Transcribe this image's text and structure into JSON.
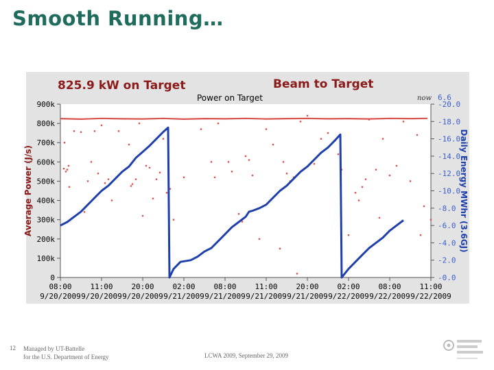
{
  "slide": {
    "title": "Smooth Running…",
    "slide_number": "12",
    "footer_left_line1": "Managed by UT-Battelle",
    "footer_left_line2": "for the U.S. Department of Energy",
    "footer_center": "LCWA 2009, September 29, 2009",
    "logo_name": "ornl-logo"
  },
  "panel": {
    "power_readout": "825.9 kW on Target",
    "beam_label": "Beam to Target",
    "now_label": "now",
    "now_value": "6.6"
  },
  "chart_data": {
    "type": "line",
    "title": "Power on Target",
    "ylabel": "Average Power (J/s)",
    "y2label": "Daily Energy MWhr (3.6GJ)",
    "ylim": [
      0,
      900000
    ],
    "y2lim": [
      0,
      20
    ],
    "y_ticks": [
      "0",
      "100k",
      "200k",
      "300k",
      "400k",
      "500k",
      "600k",
      "700k",
      "800k",
      "900k"
    ],
    "y2_ticks": [
      "-0.0",
      "-2.0",
      "-4.0",
      "-6.0",
      "-8.0",
      "-10.0",
      "-12.0",
      "-14.0",
      "-16.0",
      "-18.0",
      "-20.0"
    ],
    "xlim": [
      0,
      54
    ],
    "x_ticks": [
      {
        "x": 0,
        "time": "08:00",
        "date": "9/20/2009"
      },
      {
        "x": 6,
        "time": "11:00",
        "date": "9/20/2009"
      },
      {
        "x": 12,
        "time": "20:00",
        "date": "9/20/2009"
      },
      {
        "x": 18,
        "time": "02:00",
        "date": "9/21/2009"
      },
      {
        "x": 24,
        "time": "08:00",
        "date": "9/21/2009"
      },
      {
        "x": 30,
        "time": "11:00",
        "date": "9/21/2009"
      },
      {
        "x": 36,
        "time": "20:00",
        "date": "9/21/2009"
      },
      {
        "x": 42,
        "time": "02:00",
        "date": "9/22/2009"
      },
      {
        "x": 48,
        "time": "08:00",
        "date": "9/22/2009"
      },
      {
        "x": 54,
        "time": "11:00",
        "date": "9/22/2009"
      }
    ],
    "series": [
      {
        "axis": "left",
        "color": "#d9534f",
        "points": [
          [
            0,
            825000
          ],
          [
            3,
            822000
          ],
          [
            6,
            826000
          ],
          [
            9,
            824000
          ],
          [
            12,
            823000
          ],
          [
            15,
            826000
          ],
          [
            18,
            822000
          ],
          [
            21,
            825000
          ],
          [
            24,
            824000
          ],
          [
            27,
            826000
          ],
          [
            30,
            823000
          ],
          [
            33,
            825000
          ],
          [
            36,
            826000
          ],
          [
            39,
            824000
          ],
          [
            42,
            825000
          ],
          [
            45,
            823000
          ],
          [
            48,
            826000
          ],
          [
            51,
            825000
          ],
          [
            53.5,
            826000
          ]
        ]
      },
      {
        "axis": "left",
        "color": "#d9534f",
        "scatter": [
          [
            0.5,
            565000
          ],
          [
            0.8,
            550000
          ],
          [
            1,
            560000
          ],
          [
            1.2,
            580000
          ],
          [
            0.6,
            700000
          ],
          [
            1.3,
            470000
          ],
          [
            2,
            760000
          ],
          [
            3,
            755000
          ],
          [
            3.5,
            340000
          ],
          [
            4,
            500000
          ],
          [
            4.5,
            600000
          ],
          [
            5,
            760000
          ],
          [
            5.5,
            540000
          ],
          [
            6,
            790000
          ],
          [
            6.5,
            490000
          ],
          [
            7,
            510000
          ],
          [
            7.5,
            400000
          ],
          [
            8.5,
            760000
          ],
          [
            10,
            690000
          ],
          [
            10.3,
            475000
          ],
          [
            10.5,
            485000
          ],
          [
            11,
            510000
          ],
          [
            11.5,
            800000
          ],
          [
            12,
            320000
          ],
          [
            12.5,
            580000
          ],
          [
            13,
            570000
          ],
          [
            13.5,
            410000
          ],
          [
            14,
            510000
          ],
          [
            14.5,
            545000
          ],
          [
            15,
            720000
          ],
          [
            15.5,
            440000
          ],
          [
            16,
            460000
          ],
          [
            16.5,
            300000
          ],
          [
            18,
            520000
          ],
          [
            20.5,
            770000
          ],
          [
            22,
            600000
          ],
          [
            22.5,
            520000
          ],
          [
            23,
            800000
          ],
          [
            24.5,
            600000
          ],
          [
            25,
            550000
          ],
          [
            26,
            330000
          ],
          [
            26.5,
            290000
          ],
          [
            27,
            630000
          ],
          [
            27.5,
            610000
          ],
          [
            28,
            530000
          ],
          [
            29,
            200000
          ],
          [
            30,
            770000
          ],
          [
            31,
            690000
          ],
          [
            32,
            150000
          ],
          [
            32.5,
            600000
          ],
          [
            33,
            540000
          ],
          [
            33.5,
            500000
          ],
          [
            34,
            520000
          ],
          [
            34.5,
            20000
          ],
          [
            35,
            810000
          ],
          [
            36,
            840000
          ],
          [
            37,
            590000
          ],
          [
            38,
            720000
          ],
          [
            39,
            750000
          ],
          [
            40,
            710000
          ],
          [
            40.5,
            640000
          ],
          [
            41,
            560000
          ],
          [
            42,
            220000
          ],
          [
            43,
            440000
          ],
          [
            43.5,
            400000
          ],
          [
            44,
            470000
          ],
          [
            44.5,
            510000
          ],
          [
            45,
            820000
          ],
          [
            46,
            560000
          ],
          [
            46.5,
            310000
          ],
          [
            47,
            720000
          ],
          [
            48,
            530000
          ],
          [
            49,
            580000
          ],
          [
            50,
            810000
          ],
          [
            51,
            500000
          ],
          [
            52,
            740000
          ],
          [
            52.5,
            220000
          ],
          [
            53,
            370000
          ],
          [
            54,
            300000
          ]
        ]
      },
      {
        "axis": "right",
        "color": "#1f3faa",
        "points": [
          [
            0,
            6.0
          ],
          [
            1,
            6.4
          ],
          [
            2,
            7.0
          ],
          [
            3,
            7.6
          ],
          [
            4,
            8.4
          ],
          [
            5,
            9.2
          ],
          [
            6,
            10.0
          ],
          [
            7,
            10.6
          ],
          [
            8,
            11.4
          ],
          [
            9,
            12.2
          ],
          [
            10,
            12.8
          ],
          [
            11,
            13.8
          ],
          [
            12,
            14.5
          ],
          [
            13,
            15.2
          ],
          [
            14,
            16.0
          ],
          [
            15,
            16.8
          ],
          [
            15.7,
            17.3
          ],
          [
            15.9,
            0.0
          ],
          [
            16.5,
            1.0
          ],
          [
            17.5,
            1.8
          ],
          [
            19,
            2.0
          ],
          [
            20,
            2.4
          ],
          [
            21,
            3.0
          ],
          [
            22,
            3.4
          ],
          [
            23,
            4.2
          ],
          [
            24,
            5.0
          ],
          [
            25,
            5.8
          ],
          [
            26,
            6.4
          ],
          [
            27,
            7.0
          ],
          [
            27.5,
            7.6
          ],
          [
            28,
            7.7
          ],
          [
            29,
            8.0
          ],
          [
            30,
            8.4
          ],
          [
            31,
            9.2
          ],
          [
            32,
            10.0
          ],
          [
            33,
            10.6
          ],
          [
            34,
            11.4
          ],
          [
            35,
            12.2
          ],
          [
            36,
            12.8
          ],
          [
            37,
            13.6
          ],
          [
            38,
            14.4
          ],
          [
            39,
            15.0
          ],
          [
            40,
            15.8
          ],
          [
            40.8,
            16.5
          ],
          [
            41,
            0.0
          ],
          [
            42,
            1.0
          ],
          [
            43,
            1.8
          ],
          [
            44,
            2.6
          ],
          [
            45,
            3.4
          ],
          [
            46,
            4.0
          ],
          [
            47,
            4.6
          ],
          [
            48,
            5.4
          ],
          [
            49,
            6.0
          ],
          [
            50,
            6.6
          ]
        ]
      }
    ]
  }
}
